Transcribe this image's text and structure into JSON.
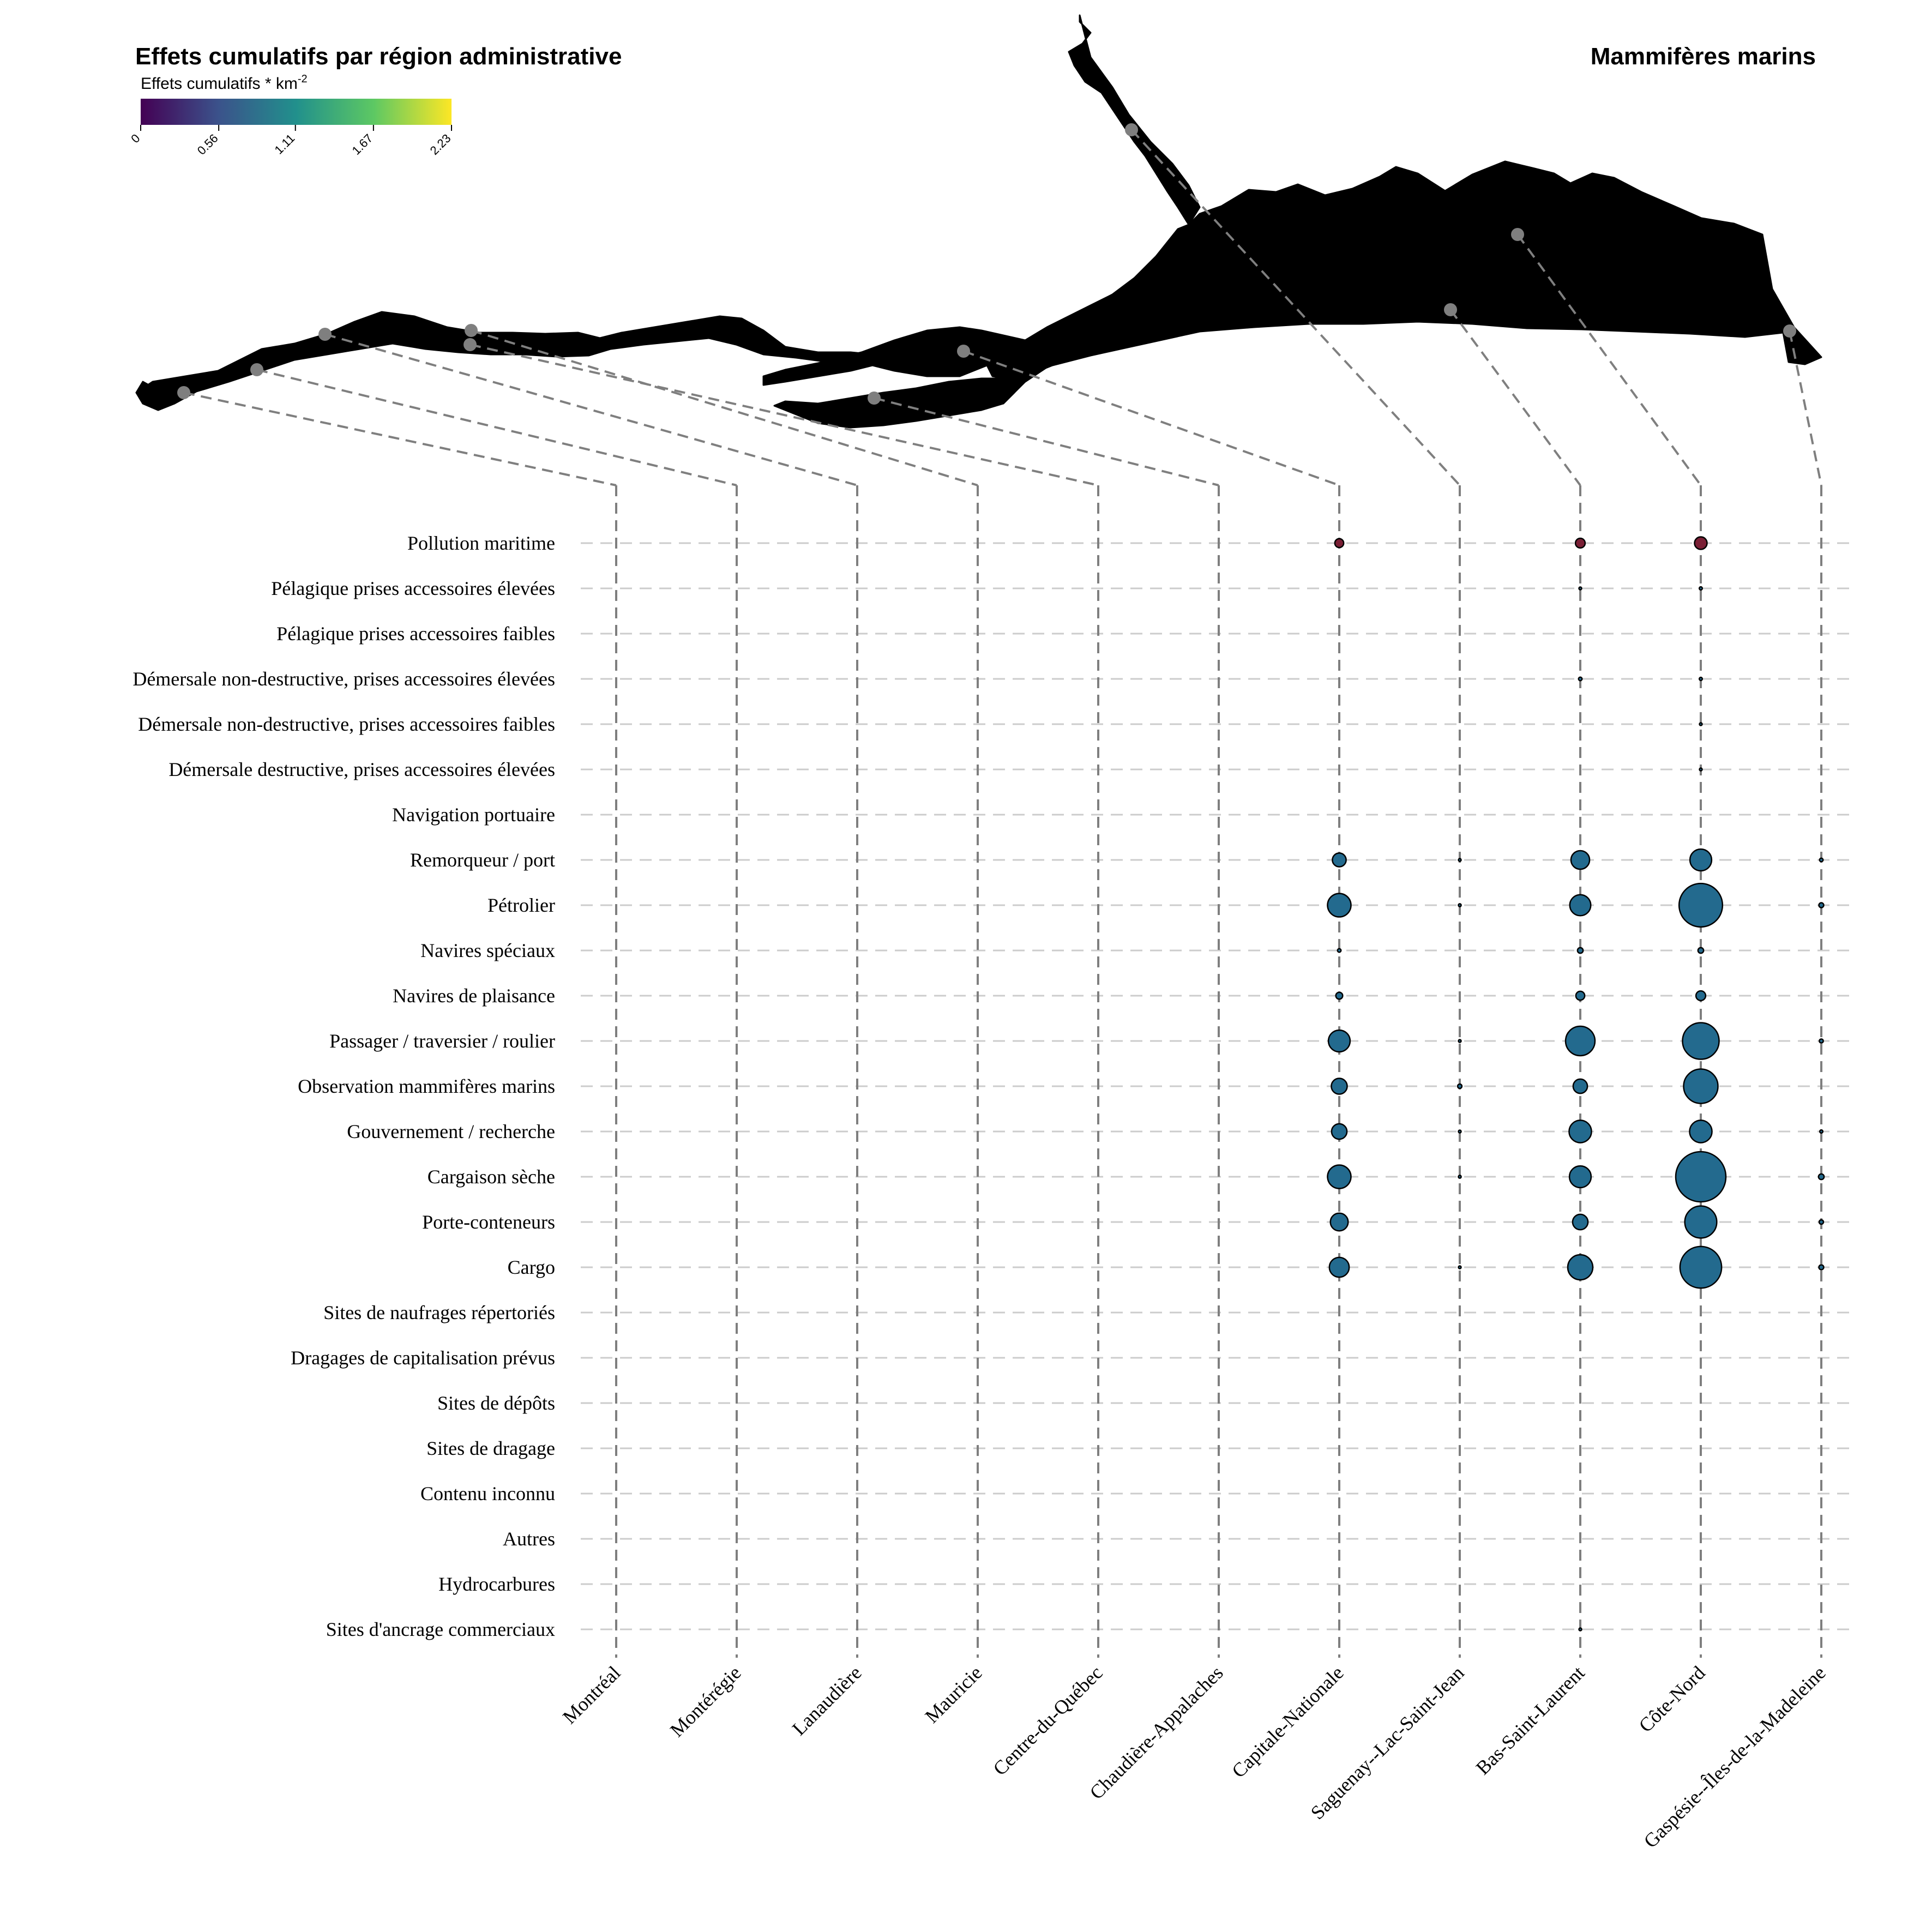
{
  "title": "Effets cumulatifs par région administrative",
  "subtitle": "Mammifères marins",
  "legend": {
    "title": "Effets cumulatifs * km",
    "title_sup": "-2",
    "ticks": [
      "0",
      "0.56",
      "1.11",
      "1.67",
      "2.23"
    ],
    "min": 0,
    "max": 2.23,
    "colors": [
      "#440154",
      "#3b528b",
      "#21908c",
      "#5dc863",
      "#fde725"
    ]
  },
  "map": {
    "region_colors": {
      "Montréal": "#440154",
      "Montérégie": "#440154",
      "Lanaudière": "#440154",
      "Mauricie": "#440154",
      "Centre-du-Québec": "#21908c",
      "Chaudière-Appalaches": "#440154",
      "Capitale-Nationale": "#21908c",
      "Saguenay--Lac-Saint-Jean": "#440154",
      "Bas-Saint-Laurent": "#2fae6c",
      "Côte-Nord": "#f9e51f",
      "Gaspésie--Îles-de-la-Madeleine": "#3c1a6e"
    },
    "connector_color": "#7f7f7f"
  },
  "chart_data": {
    "type": "bubble",
    "x_categories": [
      "Montréal",
      "Montérégie",
      "Lanaudière",
      "Mauricie",
      "Centre-du-Québec",
      "Chaudière-Appalaches",
      "Capitale-Nationale",
      "Saguenay--Lac-Saint-Jean",
      "Bas-Saint-Laurent",
      "Côte-Nord",
      "Gaspésie--Îles-de-la-Madeleine"
    ],
    "y_categories": [
      "Pollution maritime",
      "Pélagique prises accessoires élevées",
      "Pélagique prises accessoires faibles",
      "Démersale non-destructive, prises accessoires élevées",
      "Démersale non-destructive, prises accessoires faibles",
      "Démersale destructive, prises accessoires élevées",
      "Navigation portuaire",
      "Remorqueur / port",
      "Pétrolier",
      "Navires spéciaux",
      "Navires de plaisance",
      "Passager / traversier / roulier",
      "Observation mammifères marins",
      "Gouvernement / recherche",
      "Cargaison sèche",
      "Porte-conteneurs",
      "Cargo",
      "Sites de naufrages répertoriés",
      "Dragages de capitalisation prévus",
      "Sites de dépôts",
      "Sites de dragage",
      "Contenu inconnu",
      "Autres",
      "Hydrocarbures",
      "Sites d'ancrage commerciaux"
    ],
    "series_colors": {
      "Pollution maritime": "#7a1f35",
      "default": "#236a8e"
    },
    "points": [
      {
        "row": "Pollution maritime",
        "col": "Capitale-Nationale",
        "value": 0.05
      },
      {
        "row": "Pollution maritime",
        "col": "Bas-Saint-Laurent",
        "value": 0.06
      },
      {
        "row": "Pollution maritime",
        "col": "Côte-Nord",
        "value": 0.1
      },
      {
        "row": "Pélagique prises accessoires élevées",
        "col": "Bas-Saint-Laurent",
        "value": 0.004
      },
      {
        "row": "Pélagique prises accessoires élevées",
        "col": "Côte-Nord",
        "value": 0.006
      },
      {
        "row": "Démersale non-destructive, prises accessoires élevées",
        "col": "Bas-Saint-Laurent",
        "value": 0.008
      },
      {
        "row": "Démersale non-destructive, prises accessoires élevées",
        "col": "Côte-Nord",
        "value": 0.006
      },
      {
        "row": "Démersale non-destructive, prises accessoires faibles",
        "col": "Côte-Nord",
        "value": 0.002
      },
      {
        "row": "Démersale destructive, prises accessoires élevées",
        "col": "Côte-Nord",
        "value": 0.003
      },
      {
        "row": "Remorqueur / port",
        "col": "Capitale-Nationale",
        "value": 0.12
      },
      {
        "row": "Remorqueur / port",
        "col": "Saguenay--Lac-Saint-Jean",
        "value": 0.004
      },
      {
        "row": "Remorqueur / port",
        "col": "Bas-Saint-Laurent",
        "value": 0.22
      },
      {
        "row": "Remorqueur / port",
        "col": "Côte-Nord",
        "value": 0.3
      },
      {
        "row": "Remorqueur / port",
        "col": "Gaspésie--Îles-de-la-Madeleine",
        "value": 0.008
      },
      {
        "row": "Pétrolier",
        "col": "Capitale-Nationale",
        "value": 0.35
      },
      {
        "row": "Pétrolier",
        "col": "Saguenay--Lac-Saint-Jean",
        "value": 0.005
      },
      {
        "row": "Pétrolier",
        "col": "Bas-Saint-Laurent",
        "value": 0.28
      },
      {
        "row": "Pétrolier",
        "col": "Côte-Nord",
        "value": 1.2
      },
      {
        "row": "Pétrolier",
        "col": "Gaspésie--Îles-de-la-Madeleine",
        "value": 0.015
      },
      {
        "row": "Navires spéciaux",
        "col": "Capitale-Nationale",
        "value": 0.008
      },
      {
        "row": "Navires spéciaux",
        "col": "Bas-Saint-Laurent",
        "value": 0.02
      },
      {
        "row": "Navires spéciaux",
        "col": "Côte-Nord",
        "value": 0.02
      },
      {
        "row": "Navires de plaisance",
        "col": "Capitale-Nationale",
        "value": 0.03
      },
      {
        "row": "Navires de plaisance",
        "col": "Bas-Saint-Laurent",
        "value": 0.05
      },
      {
        "row": "Navires de plaisance",
        "col": "Côte-Nord",
        "value": 0.06
      },
      {
        "row": "Passager / traversier / roulier",
        "col": "Capitale-Nationale",
        "value": 0.3
      },
      {
        "row": "Passager / traversier / roulier",
        "col": "Saguenay--Lac-Saint-Jean",
        "value": 0.004
      },
      {
        "row": "Passager / traversier / roulier",
        "col": "Bas-Saint-Laurent",
        "value": 0.55
      },
      {
        "row": "Passager / traversier / roulier",
        "col": "Côte-Nord",
        "value": 0.85
      },
      {
        "row": "Passager / traversier / roulier",
        "col": "Gaspésie--Îles-de-la-Madeleine",
        "value": 0.01
      },
      {
        "row": "Observation mammifères marins",
        "col": "Capitale-Nationale",
        "value": 0.16
      },
      {
        "row": "Observation mammifères marins",
        "col": "Saguenay--Lac-Saint-Jean",
        "value": 0.012
      },
      {
        "row": "Observation mammifères marins",
        "col": "Bas-Saint-Laurent",
        "value": 0.13
      },
      {
        "row": "Observation mammifères marins",
        "col": "Côte-Nord",
        "value": 0.75
      },
      {
        "row": "Gouvernement / recherche",
        "col": "Capitale-Nationale",
        "value": 0.15
      },
      {
        "row": "Gouvernement / recherche",
        "col": "Saguenay--Lac-Saint-Jean",
        "value": 0.003
      },
      {
        "row": "Gouvernement / recherche",
        "col": "Bas-Saint-Laurent",
        "value": 0.32
      },
      {
        "row": "Gouvernement / recherche",
        "col": "Côte-Nord",
        "value": 0.32
      },
      {
        "row": "Gouvernement / recherche",
        "col": "Gaspésie--Îles-de-la-Madeleine",
        "value": 0.006
      },
      {
        "row": "Cargaison sèche",
        "col": "Capitale-Nationale",
        "value": 0.35
      },
      {
        "row": "Cargaison sèche",
        "col": "Saguenay--Lac-Saint-Jean",
        "value": 0.005
      },
      {
        "row": "Cargaison sèche",
        "col": "Bas-Saint-Laurent",
        "value": 0.3
      },
      {
        "row": "Cargaison sèche",
        "col": "Côte-Nord",
        "value": 1.6
      },
      {
        "row": "Cargaison sèche",
        "col": "Gaspésie--Îles-de-la-Madeleine",
        "value": 0.02
      },
      {
        "row": "Porte-conteneurs",
        "col": "Capitale-Nationale",
        "value": 0.2
      },
      {
        "row": "Porte-conteneurs",
        "col": "Bas-Saint-Laurent",
        "value": 0.15
      },
      {
        "row": "Porte-conteneurs",
        "col": "Côte-Nord",
        "value": 0.65
      },
      {
        "row": "Porte-conteneurs",
        "col": "Gaspésie--Îles-de-la-Madeleine",
        "value": 0.012
      },
      {
        "row": "Cargo",
        "col": "Capitale-Nationale",
        "value": 0.25
      },
      {
        "row": "Cargo",
        "col": "Saguenay--Lac-Saint-Jean",
        "value": 0.003
      },
      {
        "row": "Cargo",
        "col": "Bas-Saint-Laurent",
        "value": 0.4
      },
      {
        "row": "Cargo",
        "col": "Côte-Nord",
        "value": 1.1
      },
      {
        "row": "Cargo",
        "col": "Gaspésie--Îles-de-la-Madeleine",
        "value": 0.015
      },
      {
        "row": "Sites d'ancrage commerciaux",
        "col": "Bas-Saint-Laurent",
        "value": 0.004
      }
    ]
  }
}
